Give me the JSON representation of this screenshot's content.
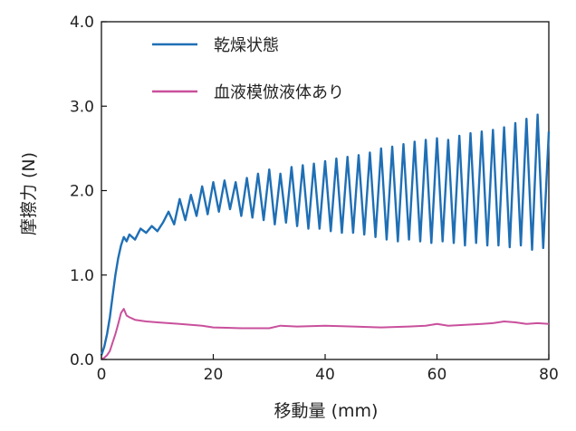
{
  "chart_data": {
    "type": "line",
    "xlabel": "移動量 (mm)",
    "ylabel": "摩擦力 (N)",
    "xlim": [
      0,
      80
    ],
    "ylim": [
      0,
      4.0
    ],
    "x_ticks": [
      "0",
      "20",
      "40",
      "60",
      "80"
    ],
    "y_ticks": [
      "0.0",
      "1.0",
      "2.0",
      "3.0",
      "4.0"
    ],
    "grid": false,
    "legend_position": "top-left",
    "series": [
      {
        "name": "乾燥状態",
        "color": "#1f6fb5",
        "x": [
          0,
          0.5,
          1,
          1.5,
          2,
          2.5,
          3,
          3.5,
          4,
          4.5,
          5,
          6,
          7,
          8,
          9,
          10,
          11,
          12,
          13,
          14,
          15,
          16,
          17,
          18,
          19,
          20,
          21,
          22,
          23,
          24,
          25,
          26,
          27,
          28,
          29,
          30,
          31,
          32,
          33,
          34,
          35,
          36,
          37,
          38,
          39,
          40,
          41,
          42,
          43,
          44,
          45,
          46,
          47,
          48,
          49,
          50,
          51,
          52,
          53,
          54,
          55,
          56,
          57,
          58,
          59,
          60,
          61,
          62,
          63,
          64,
          65,
          66,
          67,
          68,
          69,
          70,
          71,
          72,
          73,
          74,
          75,
          76,
          77,
          78,
          79,
          80
        ],
        "y": [
          0.05,
          0.15,
          0.3,
          0.5,
          0.75,
          1.0,
          1.2,
          1.35,
          1.45,
          1.4,
          1.48,
          1.42,
          1.55,
          1.5,
          1.58,
          1.52,
          1.62,
          1.75,
          1.6,
          1.9,
          1.65,
          1.95,
          1.7,
          2.05,
          1.72,
          2.1,
          1.75,
          2.12,
          1.78,
          2.1,
          1.7,
          2.15,
          1.68,
          2.2,
          1.65,
          2.25,
          1.6,
          2.2,
          1.62,
          2.28,
          1.58,
          2.3,
          1.55,
          2.32,
          1.55,
          2.35,
          1.52,
          2.38,
          1.5,
          2.4,
          1.5,
          2.42,
          1.48,
          2.45,
          1.45,
          2.5,
          1.42,
          2.52,
          1.4,
          2.55,
          1.42,
          2.58,
          1.4,
          2.6,
          1.38,
          2.62,
          1.4,
          2.6,
          1.38,
          2.65,
          1.35,
          2.68,
          1.38,
          2.7,
          1.35,
          2.72,
          1.35,
          2.75,
          1.33,
          2.8,
          1.35,
          2.85,
          1.3,
          2.9,
          1.32,
          2.7
        ]
      },
      {
        "name": "血液模倣液体あり",
        "color": "#c9509c",
        "x": [
          0,
          0.5,
          1,
          1.5,
          2,
          2.5,
          3,
          3.5,
          4,
          4.5,
          5,
          6,
          7,
          8,
          10,
          12,
          14,
          16,
          18,
          20,
          25,
          30,
          32,
          35,
          40,
          45,
          50,
          55,
          58,
          60,
          62,
          65,
          68,
          70,
          72,
          74,
          76,
          78,
          80
        ],
        "y": [
          0.0,
          0.02,
          0.05,
          0.1,
          0.2,
          0.3,
          0.42,
          0.55,
          0.6,
          0.52,
          0.5,
          0.47,
          0.46,
          0.45,
          0.44,
          0.43,
          0.42,
          0.41,
          0.4,
          0.38,
          0.37,
          0.37,
          0.4,
          0.39,
          0.4,
          0.39,
          0.38,
          0.39,
          0.4,
          0.42,
          0.4,
          0.41,
          0.42,
          0.43,
          0.45,
          0.44,
          0.42,
          0.43,
          0.42
        ]
      }
    ]
  }
}
